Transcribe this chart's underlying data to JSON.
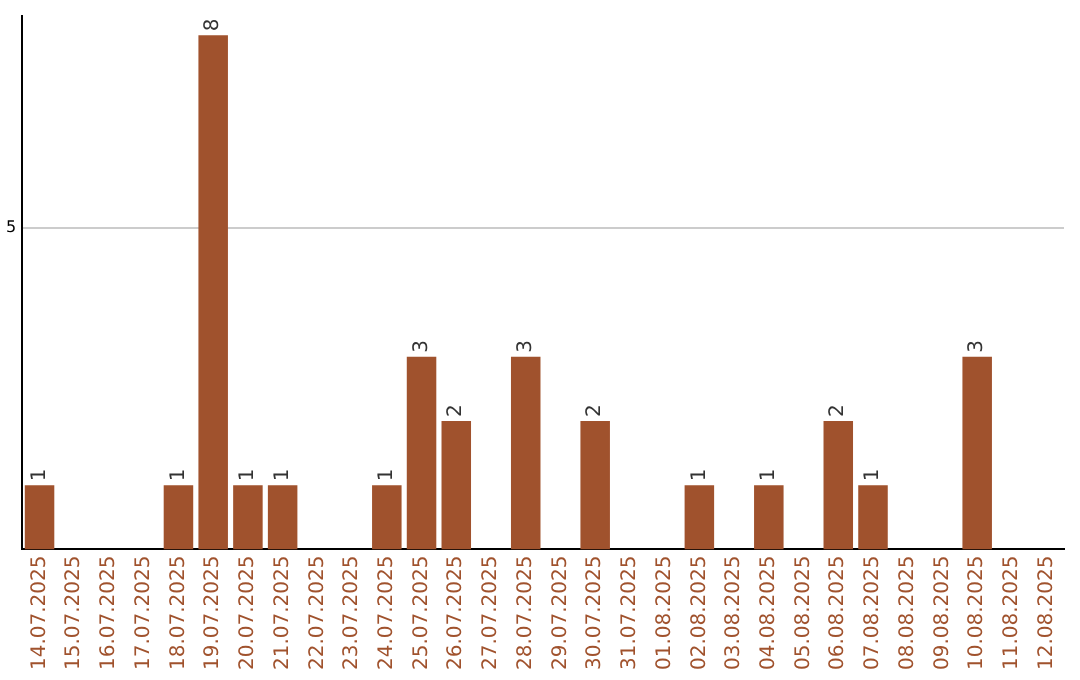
{
  "chart_data": {
    "type": "bar",
    "categories": [
      "14.07.2025",
      "15.07.2025",
      "16.07.2025",
      "17.07.2025",
      "18.07.2025",
      "19.07.2025",
      "20.07.2025",
      "21.07.2025",
      "22.07.2025",
      "23.07.2025",
      "24.07.2025",
      "25.07.2025",
      "26.07.2025",
      "27.07.2025",
      "28.07.2025",
      "29.07.2025",
      "30.07.2025",
      "31.07.2025",
      "01.08.2025",
      "02.08.2025",
      "03.08.2025",
      "04.08.2025",
      "05.08.2025",
      "06.08.2025",
      "07.08.2025",
      "08.08.2025",
      "09.08.2025",
      "10.08.2025",
      "11.08.2025",
      "12.08.2025"
    ],
    "values": [
      1,
      0,
      0,
      0,
      1,
      8,
      1,
      1,
      0,
      0,
      1,
      3,
      2,
      0,
      3,
      0,
      2,
      0,
      0,
      1,
      0,
      1,
      0,
      2,
      1,
      0,
      0,
      3,
      0,
      0
    ],
    "value_labels": [
      "1",
      null,
      null,
      null,
      "1",
      "8",
      "1",
      "1",
      null,
      null,
      "1",
      "3",
      "2",
      null,
      "3",
      null,
      "2",
      null,
      null,
      "1",
      null,
      "1",
      null,
      "2",
      "1",
      null,
      null,
      "3",
      null,
      null
    ],
    "color": "#a0522d",
    "ylim": [
      0,
      8.3
    ],
    "yticks": [
      5
    ],
    "grid": "y",
    "legend": false
  }
}
